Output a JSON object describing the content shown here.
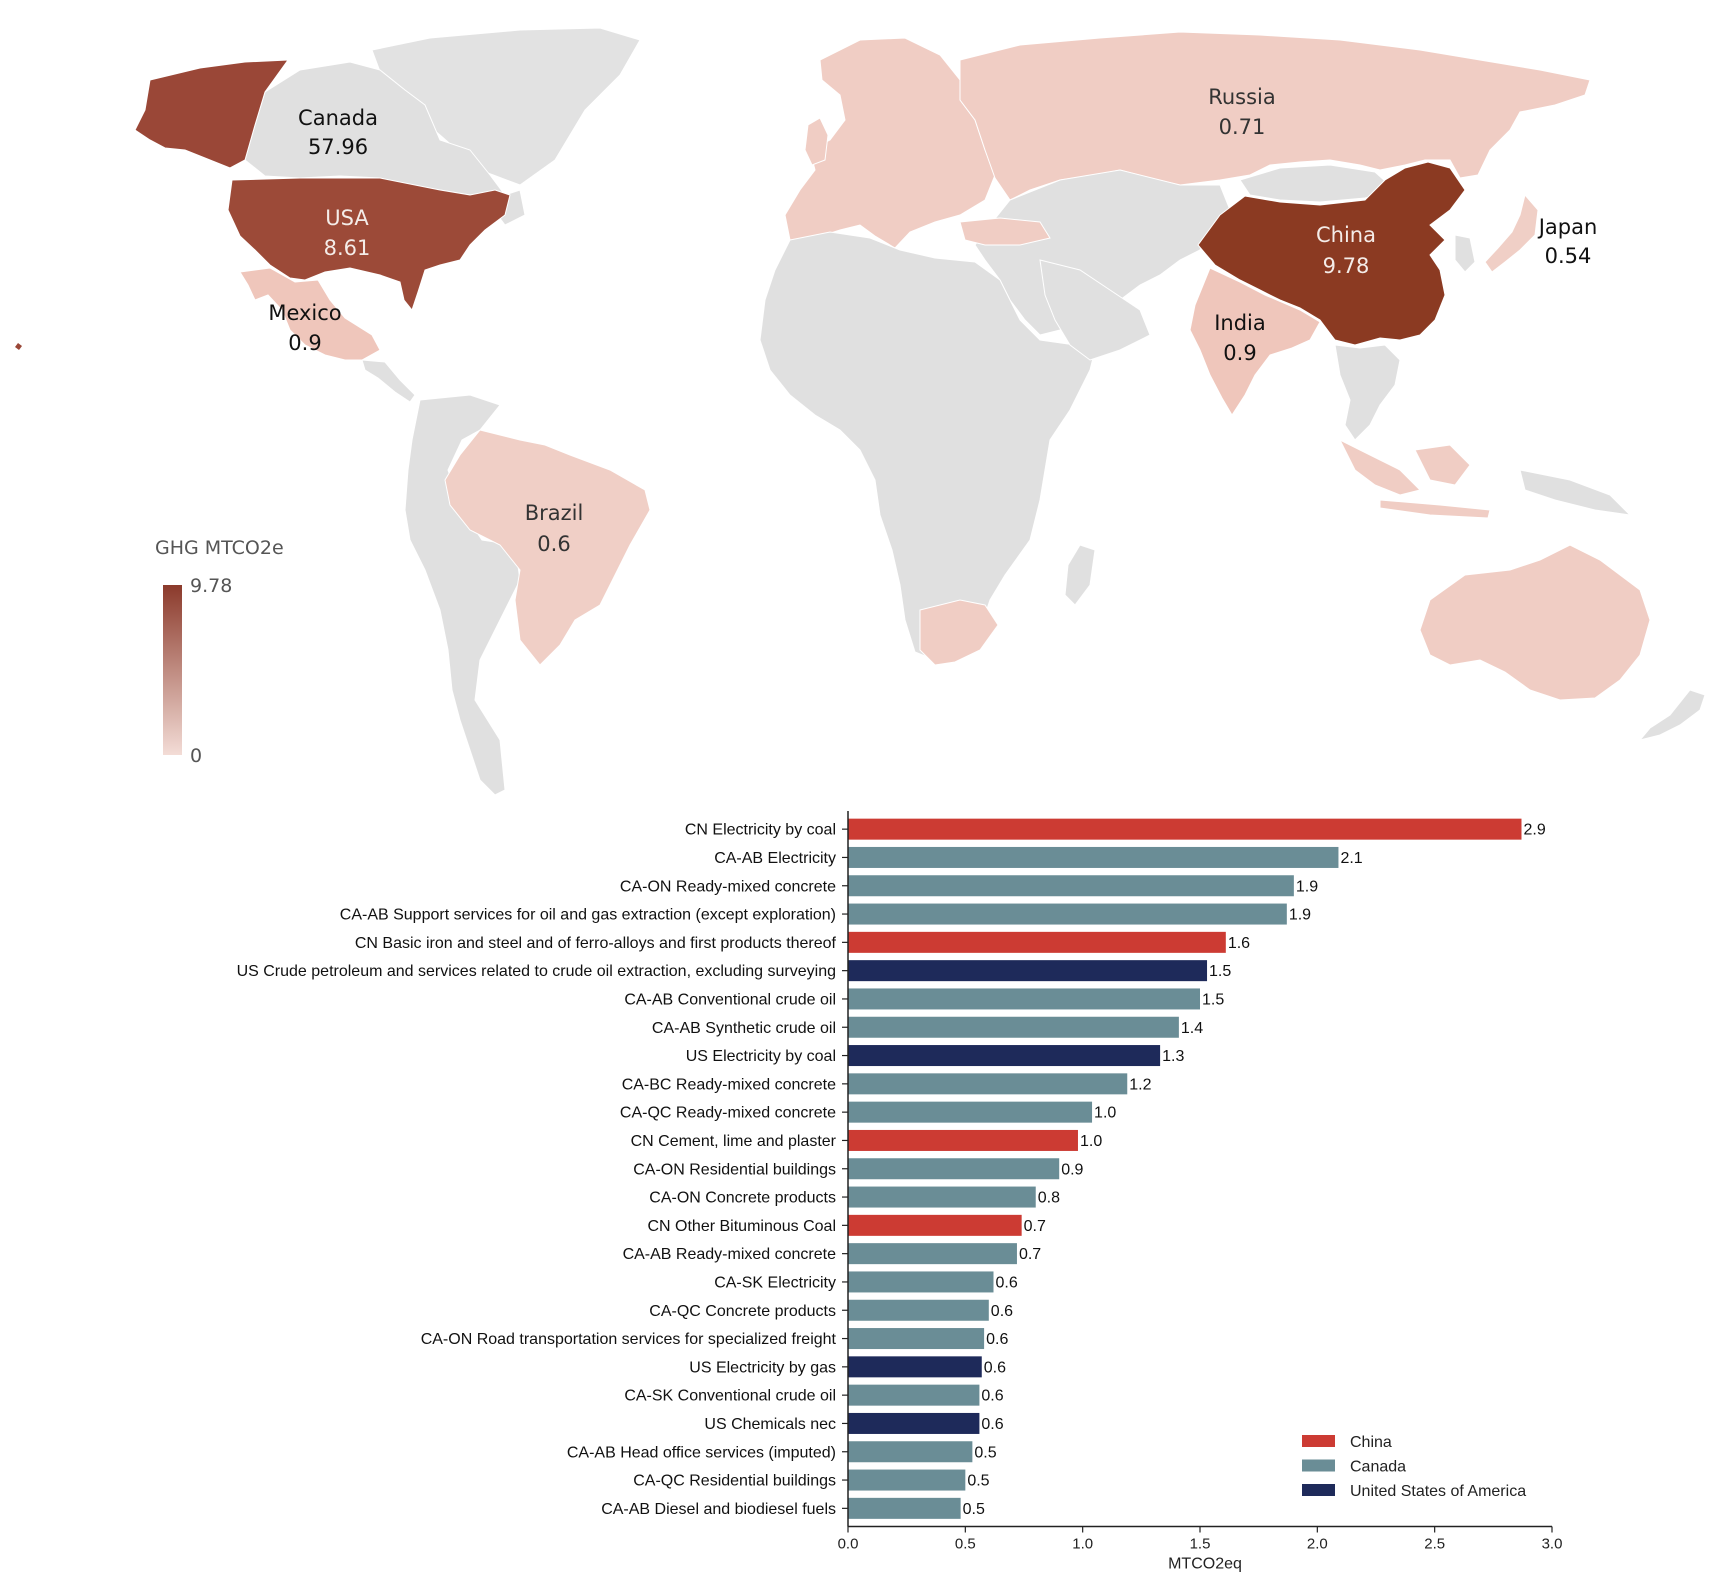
{
  "map": {
    "colorbar": {
      "title": "GHG MTCO2e",
      "max_label": "9.78",
      "min_label": "0",
      "color_low": "#f3dcd6",
      "color_high": "#8b3a2b"
    },
    "land_color": "#e0e0e0",
    "countries": [
      {
        "name": "Canada",
        "value": "57.96",
        "shade": "#e0e0e0"
      },
      {
        "name": "USA",
        "value": "8.61",
        "shade": "#9c4a38"
      },
      {
        "name": "Mexico",
        "value": "0.9",
        "shade": "#efc6bb"
      },
      {
        "name": "Brazil",
        "value": "0.6",
        "shade": "#f0cfc6"
      },
      {
        "name": "Russia",
        "value": "0.71",
        "shade": "#f0cdc4"
      },
      {
        "name": "China",
        "value": "9.78",
        "shade": "#8b3a22"
      },
      {
        "name": "Japan",
        "value": "0.54",
        "shade": "#f0cfc6"
      },
      {
        "name": "India",
        "value": "0.9",
        "shade": "#efc6bb"
      }
    ]
  },
  "chart_data": {
    "type": "bar",
    "orientation": "horizontal",
    "xlabel": "MTCO2eq",
    "xlim": [
      0,
      3.0
    ],
    "xticks": [
      "0.0",
      "0.5",
      "1.0",
      "1.5",
      "2.0",
      "2.5",
      "3.0"
    ],
    "legend": {
      "position": "bottom-right",
      "entries": [
        {
          "name": "China",
          "color": "#cc3b33"
        },
        {
          "name": "Canada",
          "color": "#6a8d96"
        },
        {
          "name": "United States of America",
          "color": "#1e2a5a"
        }
      ]
    },
    "bars": [
      {
        "label": "CN Electricity by coal",
        "value": 2.87,
        "display": "2.9",
        "country": "China"
      },
      {
        "label": "CA-AB Electricity",
        "value": 2.09,
        "display": "2.1",
        "country": "Canada"
      },
      {
        "label": "CA-ON Ready-mixed concrete",
        "value": 1.9,
        "display": "1.9",
        "country": "Canada"
      },
      {
        "label": "CA-AB Support services for oil and gas extraction (except exploration)",
        "value": 1.87,
        "display": "1.9",
        "country": "Canada"
      },
      {
        "label": "CN Basic iron and steel and of ferro-alloys and first products thereof",
        "value": 1.61,
        "display": "1.6",
        "country": "China"
      },
      {
        "label": "US Crude petroleum and services related to crude oil extraction, excluding surveying",
        "value": 1.53,
        "display": "1.5",
        "country": "United States of America"
      },
      {
        "label": "CA-AB Conventional crude oil",
        "value": 1.5,
        "display": "1.5",
        "country": "Canada"
      },
      {
        "label": "CA-AB Synthetic crude oil",
        "value": 1.41,
        "display": "1.4",
        "country": "Canada"
      },
      {
        "label": "US Electricity by coal",
        "value": 1.33,
        "display": "1.3",
        "country": "United States of America"
      },
      {
        "label": "CA-BC Ready-mixed concrete",
        "value": 1.19,
        "display": "1.2",
        "country": "Canada"
      },
      {
        "label": "CA-QC Ready-mixed concrete",
        "value": 1.04,
        "display": "1.0",
        "country": "Canada"
      },
      {
        "label": "CN Cement, lime and plaster",
        "value": 0.98,
        "display": "1.0",
        "country": "China"
      },
      {
        "label": "CA-ON Residential buildings",
        "value": 0.9,
        "display": "0.9",
        "country": "Canada"
      },
      {
        "label": "CA-ON Concrete products",
        "value": 0.8,
        "display": "0.8",
        "country": "Canada"
      },
      {
        "label": "CN Other Bituminous Coal",
        "value": 0.74,
        "display": "0.7",
        "country": "China"
      },
      {
        "label": "CA-AB Ready-mixed concrete",
        "value": 0.72,
        "display": "0.7",
        "country": "Canada"
      },
      {
        "label": "CA-SK Electricity",
        "value": 0.62,
        "display": "0.6",
        "country": "Canada"
      },
      {
        "label": "CA-QC Concrete products",
        "value": 0.6,
        "display": "0.6",
        "country": "Canada"
      },
      {
        "label": "CA-ON Road transportation services for specialized freight",
        "value": 0.58,
        "display": "0.6",
        "country": "Canada"
      },
      {
        "label": "US Electricity by gas",
        "value": 0.57,
        "display": "0.6",
        "country": "United States of America"
      },
      {
        "label": "CA-SK Conventional crude oil",
        "value": 0.56,
        "display": "0.6",
        "country": "Canada"
      },
      {
        "label": "US Chemicals nec",
        "value": 0.56,
        "display": "0.6",
        "country": "United States of America"
      },
      {
        "label": "CA-AB Head office services (imputed)",
        "value": 0.53,
        "display": "0.5",
        "country": "Canada"
      },
      {
        "label": "CA-QC Residential buildings",
        "value": 0.5,
        "display": "0.5",
        "country": "Canada"
      },
      {
        "label": "CA-AB Diesel and biodiesel fuels",
        "value": 0.48,
        "display": "0.5",
        "country": "Canada"
      }
    ]
  }
}
